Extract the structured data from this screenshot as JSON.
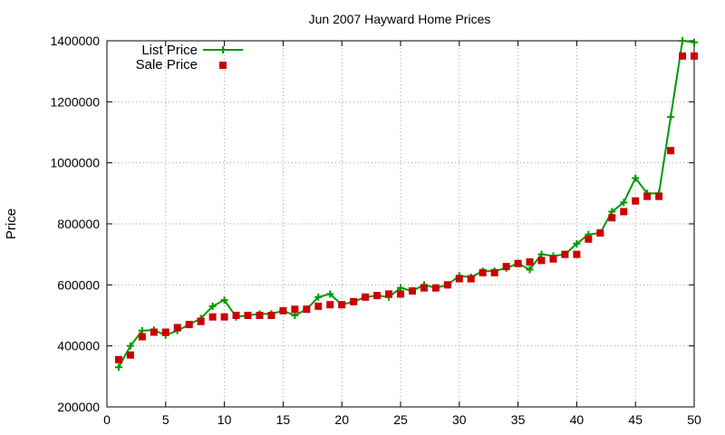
{
  "chart_data": {
    "type": "line",
    "title": "Jun 2007 Hayward Home Prices",
    "xlabel": "",
    "ylabel": "Price",
    "xlim": [
      0,
      50
    ],
    "ylim": [
      200000,
      1400000
    ],
    "x_ticks": [
      0,
      5,
      10,
      15,
      20,
      25,
      30,
      35,
      40,
      45,
      50
    ],
    "y_ticks": [
      200000,
      400000,
      600000,
      800000,
      1000000,
      1200000,
      1400000
    ],
    "grid": true,
    "legend_position": "top-left",
    "x": [
      1,
      2,
      3,
      4,
      5,
      6,
      7,
      8,
      9,
      10,
      11,
      12,
      13,
      14,
      15,
      16,
      17,
      18,
      19,
      20,
      21,
      22,
      23,
      24,
      25,
      26,
      27,
      28,
      29,
      30,
      31,
      32,
      33,
      34,
      35,
      36,
      37,
      38,
      39,
      40,
      41,
      42,
      43,
      44,
      45,
      46,
      47,
      48,
      49,
      50
    ],
    "series": [
      {
        "name": "List Price",
        "style": "line-plus",
        "color": "#009900",
        "values": [
          330000,
          400000,
          450000,
          452000,
          435000,
          450000,
          470000,
          490000,
          530000,
          550000,
          495000,
          500000,
          505000,
          505000,
          515000,
          500000,
          520000,
          560000,
          570000,
          535000,
          545000,
          560000,
          565000,
          560000,
          590000,
          580000,
          600000,
          590000,
          600000,
          630000,
          625000,
          645000,
          645000,
          655000,
          670000,
          650000,
          700000,
          695000,
          700000,
          735000,
          765000,
          770000,
          840000,
          870000,
          950000,
          900000,
          900000,
          1150000,
          1400000,
          1395000
        ]
      },
      {
        "name": "Sale Price",
        "style": "square-points",
        "color": "#cc0000",
        "values": [
          355000,
          370000,
          430000,
          445000,
          445000,
          460000,
          470000,
          480000,
          495000,
          495000,
          500000,
          500000,
          500000,
          500000,
          515000,
          520000,
          520000,
          530000,
          535000,
          535000,
          545000,
          560000,
          565000,
          570000,
          570000,
          580000,
          590000,
          590000,
          600000,
          620000,
          620000,
          640000,
          640000,
          660000,
          670000,
          675000,
          680000,
          685000,
          700000,
          700000,
          750000,
          770000,
          820000,
          840000,
          875000,
          890000,
          890000,
          1040000,
          1350000,
          1350000
        ]
      }
    ]
  }
}
